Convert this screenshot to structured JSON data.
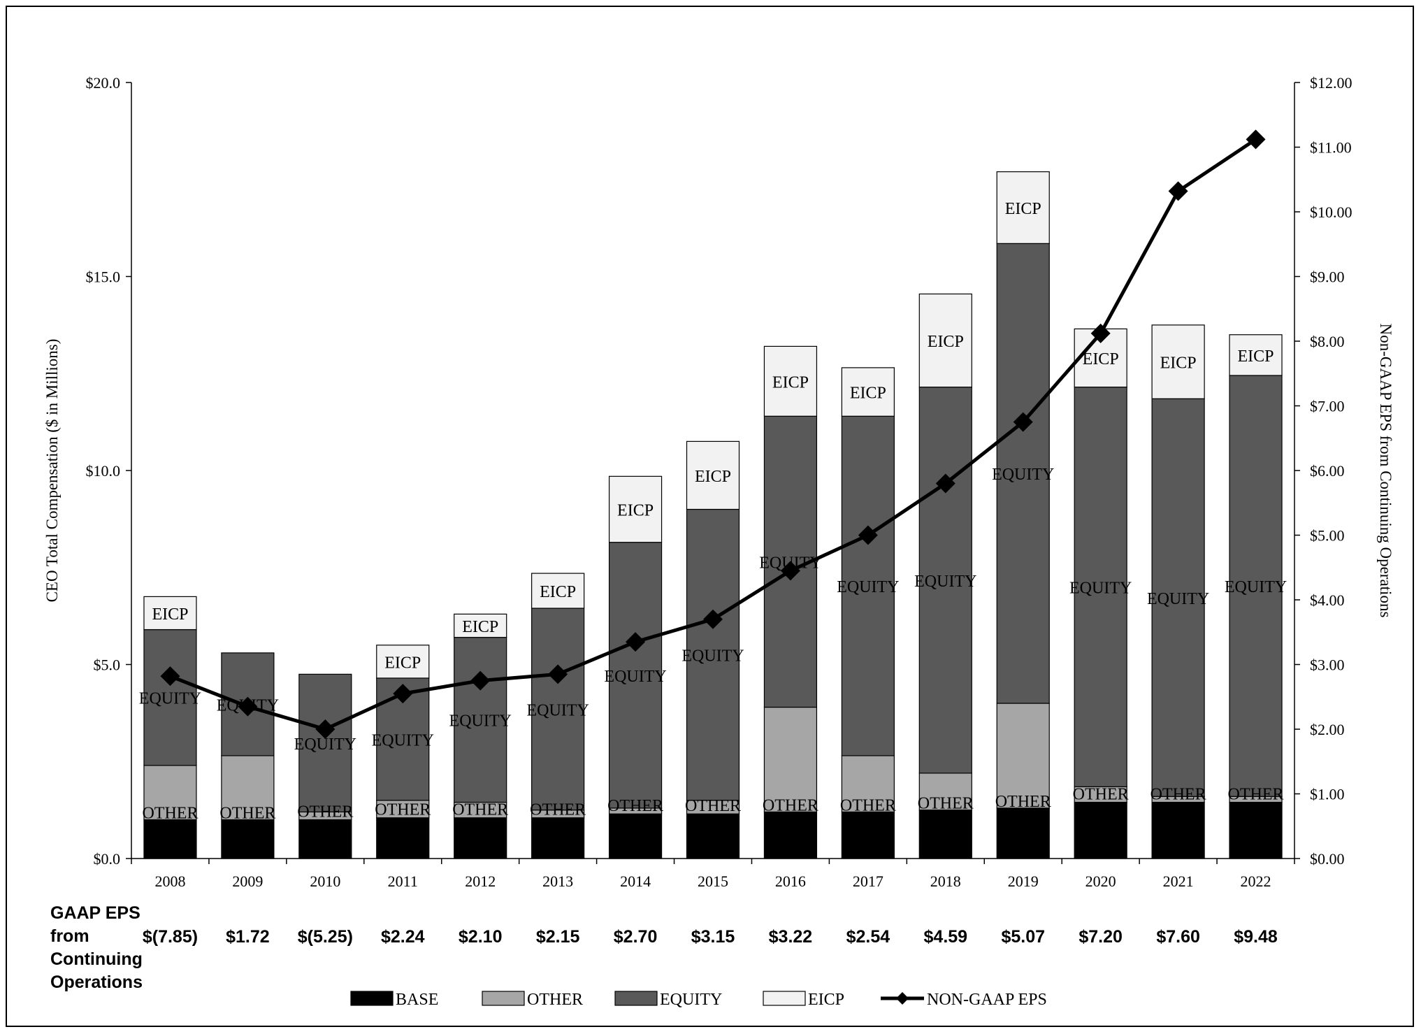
{
  "chart_data": {
    "type": "bar",
    "subtype": "stacked-bar-with-line",
    "categories": [
      "2008",
      "2009",
      "2010",
      "2011",
      "2012",
      "2013",
      "2014",
      "2015",
      "2016",
      "2017",
      "2018",
      "2019",
      "2020",
      "2021",
      "2022"
    ],
    "series": [
      {
        "name": "BASE",
        "color": "#000000",
        "values": [
          1.0,
          1.0,
          1.0,
          1.05,
          1.05,
          1.05,
          1.15,
          1.15,
          1.2,
          1.2,
          1.25,
          1.3,
          1.45,
          1.45,
          1.45
        ]
      },
      {
        "name": "OTHER",
        "color": "#a6a6a6",
        "values": [
          1.4,
          1.65,
          0.2,
          0.45,
          0.4,
          0.2,
          0.15,
          0.35,
          2.7,
          1.45,
          0.95,
          2.7,
          0.4,
          0.15,
          0.15
        ]
      },
      {
        "name": "EQUITY",
        "color": "#595959",
        "values": [
          3.5,
          2.65,
          3.55,
          3.15,
          4.25,
          5.2,
          6.85,
          7.5,
          7.5,
          8.75,
          9.95,
          11.85,
          10.3,
          10.25,
          10.85
        ]
      },
      {
        "name": "EICP",
        "color": "#f2f2f2",
        "values": [
          0.85,
          0,
          0,
          0.85,
          0.6,
          0.9,
          1.7,
          1.75,
          1.8,
          1.25,
          2.4,
          1.85,
          1.5,
          1.9,
          1.05
        ]
      }
    ],
    "line_series": {
      "name": "NON-GAAP EPS",
      "axis": "right",
      "color": "#000000",
      "values": [
        2.82,
        2.35,
        2.0,
        2.55,
        2.75,
        2.85,
        3.35,
        3.7,
        4.45,
        5.0,
        5.8,
        6.75,
        8.12,
        10.32,
        11.12
      ]
    },
    "segment_labels": {
      "OTHER": "OTHER",
      "EQUITY": "EQUITY",
      "EICP": "EICP"
    },
    "ylabel": "CEO Total Compensation ($ in Millions)",
    "ylabel_right": "Non-GAAP EPS from Continuing Operations",
    "ylim": [
      0,
      20
    ],
    "ylim_right": [
      0,
      12
    ],
    "yticks": [
      "$0.0",
      "$5.0",
      "$10.0",
      "$15.0",
      "$20.0"
    ],
    "yticks_right": [
      "$0.00",
      "$1.00",
      "$2.00",
      "$3.00",
      "$4.00",
      "$5.00",
      "$6.00",
      "$7.00",
      "$8.00",
      "$9.00",
      "$10.00",
      "$11.00",
      "$12.00"
    ],
    "gaap_eps_label": [
      "GAAP EPS",
      "from",
      "Continuing",
      "Operations"
    ],
    "gaap_eps": [
      "$(7.85)",
      "$1.72",
      "$(5.25)",
      "$2.24",
      "$2.10",
      "$2.15",
      "$2.70",
      "$3.15",
      "$3.22",
      "$2.54",
      "$4.59",
      "$5.07",
      "$7.20",
      "$7.60",
      "$9.48"
    ],
    "legend": [
      "BASE",
      "OTHER",
      "EQUITY",
      "EICP",
      "NON-GAAP EPS"
    ],
    "legend_position": "bottom"
  }
}
